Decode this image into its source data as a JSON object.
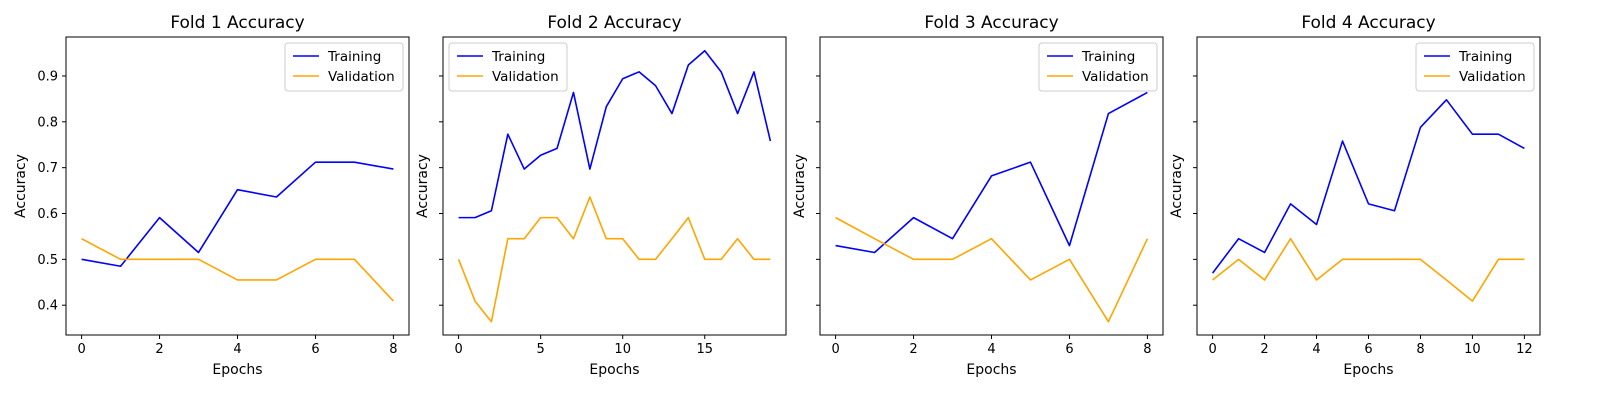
{
  "chart_data": [
    {
      "type": "line",
      "title": "Fold 1 Accuracy",
      "xlabel": "Epochs",
      "ylabel": "Accuracy",
      "xlim": [
        -0.4,
        8.4
      ],
      "ylim": [
        0.335,
        0.985
      ],
      "xticks": [
        0,
        2,
        4,
        6,
        8
      ],
      "yticks": [
        0.4,
        0.5,
        0.6,
        0.7,
        0.8,
        0.9
      ],
      "show_yticklabels": true,
      "legend": "upper right",
      "x": [
        0,
        1,
        2,
        3,
        4,
        5,
        6,
        7,
        8
      ],
      "series": [
        {
          "name": "Training",
          "color": "#0000ff",
          "values": [
            0.5,
            0.485,
            0.591,
            0.515,
            0.652,
            0.636,
            0.712,
            0.712,
            0.697
          ]
        },
        {
          "name": "Validation",
          "color": "#ffa500",
          "values": [
            0.545,
            0.5,
            0.5,
            0.5,
            0.455,
            0.455,
            0.5,
            0.5,
            0.409
          ]
        }
      ]
    },
    {
      "type": "line",
      "title": "Fold 2 Accuracy",
      "xlabel": "Epochs",
      "ylabel": "Accuracy",
      "xlim": [
        -0.95,
        19.95
      ],
      "ylim": [
        0.335,
        0.985
      ],
      "xticks": [
        0,
        5,
        10,
        15
      ],
      "yticks": [
        0.4,
        0.5,
        0.6,
        0.7,
        0.8,
        0.9
      ],
      "show_yticklabels": false,
      "legend": "upper left",
      "x": [
        0,
        1,
        2,
        3,
        4,
        5,
        6,
        7,
        8,
        9,
        10,
        11,
        12,
        13,
        14,
        15,
        16,
        17,
        18,
        19
      ],
      "series": [
        {
          "name": "Training",
          "color": "#0000ff",
          "values": [
            0.591,
            0.591,
            0.606,
            0.773,
            0.697,
            0.727,
            0.742,
            0.864,
            0.697,
            0.833,
            0.894,
            0.909,
            0.879,
            0.818,
            0.924,
            0.955,
            0.909,
            0.818,
            0.909,
            0.758
          ]
        },
        {
          "name": "Validation",
          "color": "#ffa500",
          "values": [
            0.5,
            0.409,
            0.364,
            0.545,
            0.545,
            0.591,
            0.591,
            0.545,
            0.636,
            0.545,
            0.545,
            0.5,
            0.5,
            0.545,
            0.591,
            0.5,
            0.5,
            0.545,
            0.5,
            0.5
          ]
        }
      ]
    },
    {
      "type": "line",
      "title": "Fold 3 Accuracy",
      "xlabel": "Epochs",
      "ylabel": "Accuracy",
      "xlim": [
        -0.4,
        8.4
      ],
      "ylim": [
        0.335,
        0.985
      ],
      "xticks": [
        0,
        2,
        4,
        6,
        8
      ],
      "yticks": [
        0.4,
        0.5,
        0.6,
        0.7,
        0.8,
        0.9
      ],
      "show_yticklabels": false,
      "legend": "upper right",
      "x": [
        0,
        1,
        2,
        3,
        4,
        5,
        6,
        7,
        8
      ],
      "series": [
        {
          "name": "Training",
          "color": "#0000ff",
          "values": [
            0.53,
            0.515,
            0.591,
            0.545,
            0.682,
            0.712,
            0.53,
            0.818,
            0.864
          ]
        },
        {
          "name": "Validation",
          "color": "#ffa500",
          "values": [
            0.591,
            0.545,
            0.5,
            0.5,
            0.545,
            0.455,
            0.5,
            0.364,
            0.545
          ]
        }
      ]
    },
    {
      "type": "line",
      "title": "Fold 4 Accuracy",
      "xlabel": "Epochs",
      "ylabel": "Accuracy",
      "xlim": [
        -0.6,
        12.6
      ],
      "ylim": [
        0.335,
        0.985
      ],
      "xticks": [
        0,
        2,
        4,
        6,
        8,
        10,
        12
      ],
      "yticks": [
        0.4,
        0.5,
        0.6,
        0.7,
        0.8,
        0.9
      ],
      "show_yticklabels": false,
      "legend": "upper right",
      "x": [
        0,
        1,
        2,
        3,
        4,
        5,
        6,
        7,
        8,
        9,
        10,
        11,
        12
      ],
      "series": [
        {
          "name": "Training",
          "color": "#0000ff",
          "values": [
            0.47,
            0.545,
            0.515,
            0.621,
            0.576,
            0.758,
            0.621,
            0.606,
            0.788,
            0.848,
            0.773,
            0.773,
            0.742
          ]
        },
        {
          "name": "Validation",
          "color": "#ffa500",
          "values": [
            0.455,
            0.5,
            0.455,
            0.545,
            0.455,
            0.5,
            0.5,
            0.5,
            0.5,
            0.455,
            0.409,
            0.5,
            0.5
          ]
        }
      ]
    }
  ]
}
